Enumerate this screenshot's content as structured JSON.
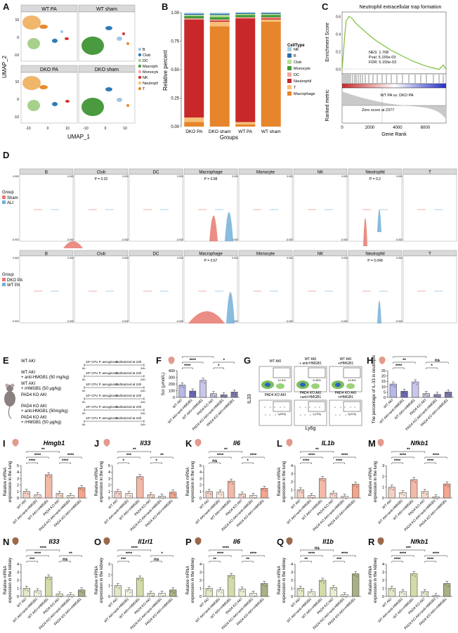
{
  "panel_letters": [
    "A",
    "B",
    "C",
    "D",
    "E",
    "F",
    "G",
    "H",
    "I",
    "J",
    "K",
    "L",
    "M",
    "N",
    "O",
    "P",
    "Q",
    "R"
  ],
  "umap": {
    "titles": [
      "WT PA",
      "WT sham",
      "DKO PA",
      "DKO sham"
    ],
    "ylabel": "UMAP_2",
    "xlabel": "UMAP_1",
    "xticks": [
      "-10",
      "0",
      "10"
    ],
    "yticks": [
      "10",
      "0",
      "-10"
    ],
    "legend": [
      {
        "label": "B",
        "color": "#9ec7e3"
      },
      {
        "label": "Club",
        "color": "#2e7bb6"
      },
      {
        "label": "DC",
        "color": "#a8d08d"
      },
      {
        "label": "Macrophage",
        "color": "#4a9a3f"
      },
      {
        "label": "Monocyte",
        "color": "#f3a6a0"
      },
      {
        "label": "NK",
        "color": "#d2332e"
      },
      {
        "label": "Neutrophil",
        "color": "#f5c27a"
      },
      {
        "label": "T",
        "color": "#e88b2c"
      }
    ],
    "cluster_labels": [
      "Macrophage",
      "Neutrophil",
      "Club",
      "B",
      "NK",
      "DC",
      "Monocyte",
      "T"
    ]
  },
  "stacked_bar": {
    "ylabel": "Relative percent",
    "xlabel": "Groups",
    "yticks": [
      "0.00",
      "0.25",
      "0.50",
      "0.75",
      "1.00"
    ],
    "legend_title": "CellType",
    "legend": [
      {
        "label": "NK",
        "color": "#a9cde3"
      },
      {
        "label": "B",
        "color": "#2a6fa8"
      },
      {
        "label": "Club",
        "color": "#b8dc94"
      },
      {
        "label": "Monocyte",
        "color": "#3e9a35"
      },
      {
        "label": "DC",
        "color": "#f3a49f"
      },
      {
        "label": "Neutrophil",
        "color": "#c8282a"
      },
      {
        "label": "T",
        "color": "#f7bf77"
      },
      {
        "label": "Macrophage",
        "color": "#e6852b"
      }
    ]
  },
  "gsea": {
    "title": "Neutrophil extracellular trap formation",
    "ylabel": "Enrichment Score",
    "ylabel2": "Ranked metric",
    "xlabel": "Gene Rank",
    "stats": [
      "NES: 1.708",
      "Pval: 5.155e-03",
      "FDR: 5.155e-03"
    ],
    "comparison": "WT PA vs. DKO PA",
    "zero_score": "Zero score at 2377",
    "xticks": [
      "0",
      "2000",
      "4000",
      "6000"
    ],
    "yticks": [
      "0.6",
      "0.4",
      "0.2",
      "0.0"
    ]
  },
  "violin": {
    "celltypes": [
      "B",
      "Club",
      "DC",
      "Macrophage",
      "Monocyte",
      "NK",
      "Neutrophil",
      "T"
    ],
    "row1_group_title": "Group",
    "row1_groups": [
      {
        "label": "Sham",
        "color": "#e8796f"
      },
      {
        "label": "ALI",
        "color": "#74b0d8"
      }
    ],
    "row1_pvals": {
      "Club": "P = 0.32",
      "Macrophage": "P = 0.08",
      "Neutrophil": "P = 0.2"
    },
    "row2_group_title": "Group",
    "row2_groups": [
      {
        "label": "DKO PA",
        "color": "#e8796f"
      },
      {
        "label": "WT PA",
        "color": "#74b0d8"
      }
    ],
    "row2_pvals": {
      "Macrophage": "P = 0.67",
      "Neutrophil": "P = 0.048"
    }
  },
  "design": {
    "groups": [
      "WT AKI",
      "WT AKI\n+ anti-HMGB1 (50 mg/kg)",
      "WT AKI\n+ rHMGB1 (50 μg/kg)",
      "PAD4 KO AKI",
      "PAD4 KO AKI\n+ anti-HMGB1 (50mg/kg)",
      "PAD4 KO AKI\n+ rHMGB1 (50 μg/kg)"
    ],
    "infection": "10⁶ CFU P. aeruginosa",
    "end": "Euthanized at 24h",
    "t0": "0h",
    "t24": "24h"
  },
  "x_groups": [
    "WT AKI",
    "WT AKI+anti-HMGB1",
    "WT AKI+rHMGB1",
    "PAD4 KO AKI",
    "PAD4 KO AKI+anti-HMGB1",
    "PAD4 KO AKI+rHMGB1"
  ],
  "flow": {
    "labels": [
      "WT AKI",
      "WT AKI\n+ anti-HMGB1",
      "WT AKI\n+rHMGB1",
      "PAD4 KO AKI",
      "PAD4 KO AKI\n+anti-HMGB1",
      "PAD4 KO AKI\n+rHMGB1"
    ],
    "gates": [
      "12.9%",
      "5.45%",
      "14.8%",
      "3.53%",
      "2.73%",
      "5.01%"
    ],
    "xlabel": "Ly6g",
    "ylabel": "IL33"
  },
  "chart_data": [
    {
      "panel": "F",
      "type": "bar",
      "ylabel": "Scr (μmol/L)",
      "yticks": [
        "0",
        "100",
        "200",
        "300",
        "400"
      ],
      "ylim": [
        0,
        400
      ],
      "categories": [
        "WT AKI",
        "WT AKI+anti-HMGB1",
        "WT AKI+rHMGB1",
        "PAD4 KO AKI",
        "PAD4 KO AKI+anti-HMGB1",
        "PAD4 KO AKI+rHMGB1"
      ],
      "values": [
        185,
        95,
        255,
        55,
        40,
        80
      ],
      "significance": [
        {
          "label": "****",
          "from": 0,
          "to": 1
        },
        {
          "label": "****",
          "from": 0,
          "to": 2
        },
        {
          "label": "*",
          "from": 3,
          "to": 4
        },
        {
          "label": "*",
          "from": 3,
          "to": 5
        },
        {
          "label": "****",
          "from": 0,
          "to": 3
        }
      ]
    },
    {
      "panel": "H",
      "type": "bar",
      "ylabel": "The percentage of IL-33 in neutrophils (%)",
      "yticks": [
        "0",
        "5",
        "10",
        "15",
        "20",
        "25"
      ],
      "ylim": [
        0,
        25
      ],
      "categories": [
        "WT AKI",
        "WT AKI+anti-HMGB1",
        "WT AKI+rHMGB1",
        "PAD4 KO AKI",
        "PAD4 KO AKI+anti-HMGB1",
        "PAD4 KO AKI+rHMGB1"
      ],
      "values": [
        12.5,
        5.8,
        14.5,
        3.6,
        2.8,
        5.0
      ],
      "significance": [
        {
          "label": "****",
          "from": 0,
          "to": 1
        },
        {
          "label": "**",
          "from": 0,
          "to": 2
        },
        {
          "label": "*",
          "from": 3,
          "to": 4
        },
        {
          "label": "ns",
          "from": 3,
          "to": 5
        },
        {
          "label": "****",
          "from": 0,
          "to": 3
        }
      ]
    },
    {
      "panel": "I",
      "type": "bar",
      "gene": "Hmgb1",
      "ylabel": "Relative mRNA expression in the lung",
      "yticks": [
        "0",
        "1",
        "2",
        "3",
        "4",
        "5"
      ],
      "ylim": [
        0,
        5
      ],
      "categories": [
        "WT AKI",
        "WT AKI+anti-HMGB1",
        "WT AKI+rHMGB1",
        "PAD4 KO AKI",
        "PAD4 KO AKI+anti-HMGB1",
        "PAD4 KO AKI+rHMGB1"
      ],
      "values": [
        1.0,
        0.5,
        3.6,
        0.7,
        0.4,
        1.6
      ],
      "significance": [
        {
          "label": "****",
          "from": 0,
          "to": 1
        },
        {
          "label": "****",
          "from": 0,
          "to": 2
        },
        {
          "label": "****",
          "from": 3,
          "to": 4
        },
        {
          "label": "****",
          "from": 3,
          "to": 5
        },
        {
          "label": "**",
          "from": 0,
          "to": 3
        }
      ]
    },
    {
      "panel": "J",
      "type": "bar",
      "gene": "Il33",
      "ylabel": "Relative mRNA expression in the lung",
      "yticks": [
        "0",
        "1",
        "2",
        "3",
        "4",
        "5"
      ],
      "ylim": [
        0,
        5
      ],
      "categories": [
        "WT AKI",
        "WT AKI+anti-HMGB1",
        "WT AKI+rHMGB1",
        "PAD4 KO AKI",
        "PAD4 KO AKI+anti-HMGB1",
        "PAD4 KO AKI+rHMGB1"
      ],
      "values": [
        1.0,
        0.7,
        3.3,
        0.5,
        0.3,
        0.9
      ],
      "significance": [
        {
          "label": "*",
          "from": 0,
          "to": 1
        },
        {
          "label": "***",
          "from": 0,
          "to": 2
        },
        {
          "label": "*",
          "from": 3,
          "to": 4
        },
        {
          "label": "**",
          "from": 3,
          "to": 5
        },
        {
          "label": "**",
          "from": 0,
          "to": 3
        }
      ]
    },
    {
      "panel": "K",
      "type": "bar",
      "gene": "Il6",
      "ylabel": "Relative mRNA expression in the lung",
      "yticks": [
        "0",
        "1",
        "2",
        "3",
        "4",
        "5"
      ],
      "ylim": [
        0,
        5
      ],
      "categories": [
        "WT AKI",
        "WT AKI+anti-HMGB1",
        "WT AKI+rHMGB1",
        "PAD4 KO AKI",
        "PAD4 KO AKI+anti-HMGB1",
        "PAD4 KO AKI+rHMGB1"
      ],
      "values": [
        1.0,
        0.9,
        2.6,
        0.6,
        0.4,
        1.5
      ],
      "significance": [
        {
          "label": "ns",
          "from": 0,
          "to": 1
        },
        {
          "label": "****",
          "from": 0,
          "to": 2
        },
        {
          "label": "*",
          "from": 3,
          "to": 4
        },
        {
          "label": "****",
          "from": 3,
          "to": 5
        },
        {
          "label": "**",
          "from": 0,
          "to": 3
        }
      ]
    },
    {
      "panel": "L",
      "type": "bar",
      "gene": "IL1b",
      "ylabel": "Relative mRNA expression in the lung",
      "yticks": [
        "0",
        "1",
        "2",
        "3",
        "4"
      ],
      "ylim": [
        0,
        4
      ],
      "categories": [
        "WT AKI",
        "WT AKI+anti-HMGB1",
        "WT AKI+rHMGB1",
        "PAD4 KO AKI",
        "PAD4 KO AKI+anti-HMGB1",
        "PAD4 KO AKI+rHMGB1"
      ],
      "values": [
        1.0,
        0.3,
        2.4,
        0.6,
        0.2,
        1.7
      ],
      "significance": [
        {
          "label": "****",
          "from": 0,
          "to": 1
        },
        {
          "label": "****",
          "from": 0,
          "to": 2
        },
        {
          "label": "****",
          "from": 3,
          "to": 4
        },
        {
          "label": "****",
          "from": 3,
          "to": 5
        },
        {
          "label": "**",
          "from": 0,
          "to": 3
        }
      ]
    },
    {
      "panel": "M",
      "type": "bar",
      "gene": "Nfkb1",
      "ylabel": "Relative mRNA expression in the lung",
      "yticks": [
        "0",
        "1",
        "2",
        "3"
      ],
      "ylim": [
        0,
        3
      ],
      "categories": [
        "WT AKI",
        "WT AKI+anti-HMGB1",
        "WT AKI+rHMGB1",
        "PAD4 KO AKI",
        "PAD4 KO AKI+anti-HMGB1",
        "PAD4 KO AKI+rHMGB1"
      ],
      "values": [
        1.0,
        0.5,
        1.7,
        0.6,
        0.1,
        1.3
      ],
      "significance": [
        {
          "label": "****",
          "from": 0,
          "to": 1
        },
        {
          "label": "****",
          "from": 0,
          "to": 2
        },
        {
          "label": "****",
          "from": 3,
          "to": 4
        },
        {
          "label": "****",
          "from": 3,
          "to": 5
        },
        {
          "label": "**",
          "from": 0,
          "to": 3
        }
      ]
    },
    {
      "panel": "N",
      "type": "bar",
      "gene": "Il33",
      "ylabel": "Relative mRNA expression in the kidney",
      "yticks": [
        "0",
        "1",
        "2",
        "3",
        "4"
      ],
      "ylim": [
        0,
        4
      ],
      "categories": [
        "WT AKI",
        "WT AKI+anti-HMGB1",
        "WT AKI+rHMGB1",
        "PAD4 KO AKI",
        "PAD4 KO AKI+anti-HMGB1",
        "PAD4 KO AKI+rHMGB1"
      ],
      "values": [
        1.0,
        0.7,
        2.4,
        0.3,
        0.2,
        0.8
      ],
      "significance": [
        {
          "label": "***",
          "from": 0,
          "to": 1
        },
        {
          "label": "****",
          "from": 0,
          "to": 2
        },
        {
          "label": "ns",
          "from": 3,
          "to": 4
        },
        {
          "label": "**",
          "from": 3,
          "to": 5
        },
        {
          "label": "****",
          "from": 0,
          "to": 3
        }
      ]
    },
    {
      "panel": "O",
      "type": "bar",
      "gene": "Il1rl1",
      "ylabel": "Relative mRNA expression in the kidney",
      "yticks": [
        "0",
        "1",
        "2",
        "3"
      ],
      "ylim": [
        0,
        3
      ],
      "categories": [
        "WT AKI",
        "WT AKI+anti-HMGB1",
        "WT AKI+rHMGB1",
        "PAD4 KO AKI",
        "PAD4 KO AKI+anti-HMGB1",
        "PAD4 KO AKI+rHMGB1"
      ],
      "values": [
        1.0,
        0.6,
        1.7,
        0.3,
        0.3,
        0.6
      ],
      "significance": [
        {
          "label": "***",
          "from": 0,
          "to": 1
        },
        {
          "label": "****",
          "from": 0,
          "to": 2
        },
        {
          "label": "ns",
          "from": 3,
          "to": 4
        },
        {
          "label": "*",
          "from": 3,
          "to": 5
        },
        {
          "label": "****",
          "from": 0,
          "to": 3
        }
      ]
    },
    {
      "panel": "P",
      "type": "bar",
      "gene": "Il6",
      "ylabel": "Relative mRNA expression in the kidney",
      "yticks": [
        "0",
        "1",
        "2",
        "3",
        "4"
      ],
      "ylim": [
        0,
        4
      ],
      "categories": [
        "WT AKI",
        "WT AKI+anti-HMGB1",
        "WT AKI+rHMGB1",
        "PAD4 KO AKI",
        "PAD4 KO AKI+anti-HMGB1",
        "PAD4 KO AKI+rHMGB1"
      ],
      "values": [
        1.0,
        0.8,
        2.6,
        0.9,
        0.4,
        1.6
      ],
      "significance": [
        {
          "label": "**",
          "from": 0,
          "to": 1
        },
        {
          "label": "****",
          "from": 0,
          "to": 2
        },
        {
          "label": "**",
          "from": 3,
          "to": 4
        },
        {
          "label": "****",
          "from": 3,
          "to": 5
        },
        {
          "label": "****",
          "from": 0,
          "to": 3
        }
      ]
    },
    {
      "panel": "Q",
      "type": "bar",
      "gene": "Il1b",
      "ylabel": "Relative mRNA expression in the kidney",
      "yticks": [
        "0",
        "1",
        "2",
        "3",
        "4"
      ],
      "ylim": [
        0,
        4
      ],
      "categories": [
        "WT AKI",
        "WT AKI+anti-HMGB1",
        "WT AKI+rHMGB1",
        "PAD4 KO AKI",
        "PAD4 KO AKI+anti-HMGB1",
        "PAD4 KO AKI+rHMGB1"
      ],
      "values": [
        1.0,
        0.6,
        2.0,
        1.1,
        0.2,
        2.8
      ],
      "significance": [
        {
          "label": "**",
          "from": 0,
          "to": 1
        },
        {
          "label": "****",
          "from": 0,
          "to": 2
        },
        {
          "label": "***",
          "from": 3,
          "to": 4
        },
        {
          "label": "****",
          "from": 3,
          "to": 5
        },
        {
          "label": "ns",
          "from": 0,
          "to": 3
        }
      ]
    },
    {
      "panel": "R",
      "type": "bar",
      "gene": "Nfkb1",
      "ylabel": "Relative mRNA expression in the kidney",
      "yticks": [
        "0",
        "1",
        "2",
        "3",
        "4"
      ],
      "ylim": [
        0,
        4
      ],
      "categories": [
        "WT AKI",
        "WT AKI+anti-HMGB1",
        "WT AKI+rHMGB1",
        "PAD4 KO AKI",
        "PAD4 KO AKI+anti-HMGB1",
        "PAD4 KO AKI+rHMGB1"
      ],
      "values": [
        1.0,
        0.6,
        2.8,
        0.6,
        0.1,
        1.6
      ],
      "significance": [
        {
          "label": "****",
          "from": 0,
          "to": 1
        },
        {
          "label": "****",
          "from": 0,
          "to": 2
        },
        {
          "label": "****",
          "from": 3,
          "to": 4
        },
        {
          "label": "****",
          "from": 3,
          "to": 5
        },
        {
          "label": "***",
          "from": 0,
          "to": 3
        }
      ]
    },
    {
      "panel": "B",
      "type": "bar",
      "stacked": true,
      "categories": [
        "DKO PA",
        "DKO sham",
        "WT PA",
        "WT sham"
      ],
      "series": [
        {
          "name": "Macrophage",
          "values": [
            0.04,
            0.88,
            0.02,
            0.92
          ]
        },
        {
          "name": "T",
          "values": [
            0.04,
            0.04,
            0.02,
            0.02
          ]
        },
        {
          "name": "Neutrophil",
          "values": [
            0.86,
            0.01,
            0.91,
            0.01
          ]
        },
        {
          "name": "DC",
          "values": [
            0.01,
            0.01,
            0.01,
            0.01
          ]
        },
        {
          "name": "Monocyte",
          "values": [
            0.02,
            0.02,
            0.02,
            0.02
          ]
        },
        {
          "name": "Club",
          "values": [
            0.01,
            0.02,
            0.01,
            0.01
          ]
        },
        {
          "name": "B",
          "values": [
            0.01,
            0.01,
            0.01,
            0.01
          ]
        },
        {
          "name": "NK",
          "values": [
            0.01,
            0.01,
            0.0,
            0.0
          ]
        }
      ],
      "ylim": [
        0,
        1
      ]
    },
    {
      "panel": "C",
      "type": "line",
      "ylim": [
        -0.05,
        0.65
      ],
      "xlim": [
        0,
        7500
      ],
      "x": [
        0,
        100,
        200,
        300,
        500,
        700,
        1000,
        1500,
        2000,
        2500,
        3000,
        3500,
        4000,
        4500,
        5000,
        5500,
        6000,
        6500,
        7000,
        7300,
        7500
      ],
      "y": [
        0.0,
        0.2,
        0.4,
        0.55,
        0.6,
        0.58,
        0.52,
        0.45,
        0.38,
        0.32,
        0.27,
        0.22,
        0.18,
        0.14,
        0.1,
        0.07,
        0.04,
        0.02,
        0.0,
        0.05,
        0.0
      ]
    }
  ]
}
